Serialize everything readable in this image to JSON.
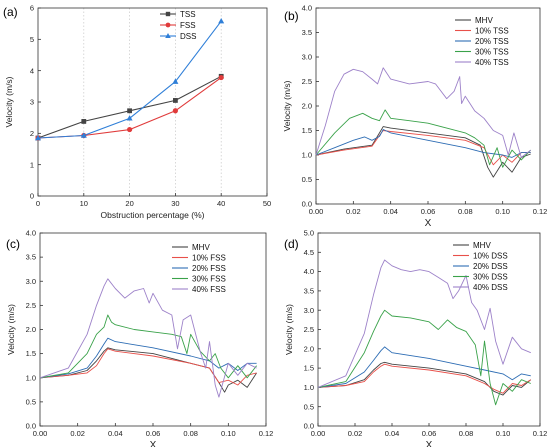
{
  "colors": {
    "mhv": "#444444",
    "pct10": "#e8504a",
    "pct20": "#2e6db4",
    "pct30": "#3aa24a",
    "pct40": "#9d82c9",
    "tss": "#444444",
    "fss": "#e03b3b",
    "dss": "#2f7fd8"
  },
  "chart_data": [
    {
      "panel_label": "(a)",
      "type": "line",
      "xlabel": "Obstruction percentage (%)",
      "ylabel": "Velocity (m/s)",
      "xlim": [
        0,
        50
      ],
      "ylim": [
        0,
        6
      ],
      "xticks": [
        "0",
        "10",
        "20",
        "30",
        "40",
        "50"
      ],
      "yticks": [
        "0",
        "1",
        "2",
        "3",
        "4",
        "5",
        "6"
      ],
      "legend_position": "top-center",
      "grid": "dotted vertical lines",
      "x": [
        0,
        10,
        20,
        30,
        40
      ],
      "series": [
        {
          "name": "TSS",
          "marker": "square",
          "color_key": "tss",
          "values": [
            1.85,
            2.38,
            2.72,
            3.05,
            3.82
          ]
        },
        {
          "name": "FSS",
          "marker": "circle",
          "color_key": "fss",
          "values": [
            1.85,
            1.93,
            2.12,
            2.72,
            3.78
          ]
        },
        {
          "name": "DSS",
          "marker": "triangle",
          "color_key": "dss",
          "values": [
            1.85,
            1.93,
            2.48,
            3.65,
            5.58
          ]
        }
      ]
    },
    {
      "panel_label": "(b)",
      "type": "line",
      "xlabel": "X",
      "ylabel": "Velocity (m/s)",
      "xlim": [
        0,
        0.12
      ],
      "ylim": [
        0,
        4.0
      ],
      "xticks": [
        "0.00",
        "0.02",
        "0.04",
        "0.06",
        "0.08",
        "0.10",
        "0.12"
      ],
      "yticks": [
        "0.0",
        "0.5",
        "1.0",
        "1.5",
        "2.0",
        "2.5",
        "3.0",
        "3.5",
        "4.0"
      ],
      "legend_position": "top-right",
      "series": [
        {
          "name": "MHV",
          "color_key": "mhv",
          "x": [
            0.0,
            0.015,
            0.03,
            0.034,
            0.036,
            0.04,
            0.06,
            0.08,
            0.088,
            0.092,
            0.095,
            0.1,
            0.105,
            0.11,
            0.115
          ],
          "values": [
            1.0,
            1.12,
            1.2,
            1.45,
            1.58,
            1.55,
            1.45,
            1.35,
            1.2,
            0.75,
            0.55,
            0.85,
            0.65,
            0.95,
            1.02
          ]
        },
        {
          "name": "10% TSS",
          "color_key": "pct10",
          "x": [
            0.0,
            0.015,
            0.03,
            0.034,
            0.036,
            0.04,
            0.06,
            0.08,
            0.09,
            0.095,
            0.1,
            0.105,
            0.11,
            0.115
          ],
          "values": [
            1.0,
            1.1,
            1.18,
            1.4,
            1.5,
            1.48,
            1.4,
            1.3,
            1.15,
            0.8,
            1.0,
            0.85,
            1.05,
            1.05
          ]
        },
        {
          "name": "20% TSS",
          "color_key": "pct20",
          "x": [
            0.0,
            0.01,
            0.02,
            0.026,
            0.03,
            0.034,
            0.036,
            0.04,
            0.06,
            0.08,
            0.09,
            0.1,
            0.105,
            0.11,
            0.115
          ],
          "values": [
            1.0,
            1.15,
            1.3,
            1.37,
            1.3,
            1.38,
            1.52,
            1.45,
            1.3,
            1.15,
            1.05,
            1.0,
            0.95,
            1.05,
            1.05
          ]
        },
        {
          "name": "30% TSS",
          "color_key": "pct30",
          "x": [
            0.0,
            0.01,
            0.018,
            0.025,
            0.03,
            0.034,
            0.037,
            0.04,
            0.05,
            0.06,
            0.07,
            0.08,
            0.085,
            0.09,
            0.093,
            0.097,
            0.1,
            0.105,
            0.11,
            0.115
          ],
          "values": [
            1.0,
            1.45,
            1.75,
            1.85,
            1.75,
            1.7,
            1.92,
            1.75,
            1.7,
            1.65,
            1.55,
            1.45,
            1.35,
            1.2,
            0.8,
            1.15,
            0.75,
            1.1,
            0.9,
            1.1
          ]
        },
        {
          "name": "40% TSS",
          "color_key": "pct40",
          "x": [
            0.0,
            0.005,
            0.01,
            0.015,
            0.02,
            0.025,
            0.03,
            0.033,
            0.036,
            0.04,
            0.05,
            0.06,
            0.064,
            0.07,
            0.074,
            0.077,
            0.078,
            0.08,
            0.085,
            0.09,
            0.095,
            0.1,
            0.103,
            0.106,
            0.11,
            0.115
          ],
          "values": [
            1.0,
            1.6,
            2.3,
            2.65,
            2.75,
            2.7,
            2.55,
            2.45,
            2.78,
            2.55,
            2.45,
            2.5,
            2.45,
            2.15,
            2.3,
            2.6,
            2.05,
            2.2,
            1.9,
            1.75,
            1.5,
            1.4,
            1.0,
            1.45,
            0.95,
            1.1
          ]
        }
      ]
    },
    {
      "panel_label": "(c)",
      "type": "line",
      "xlabel": "X",
      "ylabel": "Velocity (m/s)",
      "xlim": [
        0,
        0.12
      ],
      "ylim": [
        0,
        4.0
      ],
      "xticks": [
        "0.00",
        "0.02",
        "0.04",
        "0.06",
        "0.08",
        "0.10",
        "0.12"
      ],
      "yticks": [
        "0.0",
        "0.5",
        "1.0",
        "1.5",
        "2.0",
        "2.5",
        "3.0",
        "3.5",
        "4.0"
      ],
      "legend_position": "top-right",
      "series": [
        {
          "name": "MHV",
          "color_key": "mhv",
          "x": [
            0.0,
            0.015,
            0.025,
            0.03,
            0.034,
            0.036,
            0.04,
            0.06,
            0.08,
            0.09,
            0.095,
            0.098,
            0.1,
            0.105,
            0.11,
            0.115
          ],
          "values": [
            1.0,
            1.05,
            1.15,
            1.35,
            1.55,
            1.62,
            1.58,
            1.5,
            1.3,
            1.2,
            0.9,
            0.7,
            0.85,
            0.95,
            0.8,
            1.1
          ]
        },
        {
          "name": "10% FSS",
          "color_key": "pct10",
          "x": [
            0.0,
            0.015,
            0.025,
            0.03,
            0.034,
            0.036,
            0.04,
            0.06,
            0.08,
            0.09,
            0.095,
            0.1,
            0.105,
            0.11,
            0.115
          ],
          "values": [
            1.0,
            1.05,
            1.1,
            1.25,
            1.5,
            1.6,
            1.55,
            1.45,
            1.3,
            1.2,
            0.9,
            0.95,
            0.85,
            1.05,
            1.1
          ]
        },
        {
          "name": "20% FSS",
          "color_key": "pct20",
          "x": [
            0.0,
            0.015,
            0.025,
            0.03,
            0.034,
            0.036,
            0.04,
            0.06,
            0.08,
            0.09,
            0.095,
            0.1,
            0.105,
            0.11,
            0.115
          ],
          "values": [
            1.0,
            1.08,
            1.2,
            1.45,
            1.7,
            1.82,
            1.75,
            1.62,
            1.45,
            1.35,
            1.2,
            1.3,
            1.15,
            1.3,
            1.3
          ]
        },
        {
          "name": "30% FSS",
          "color_key": "pct30",
          "x": [
            0.0,
            0.015,
            0.025,
            0.03,
            0.034,
            0.036,
            0.038,
            0.04,
            0.05,
            0.06,
            0.07,
            0.075,
            0.078,
            0.08,
            0.085,
            0.09,
            0.093,
            0.096,
            0.1,
            0.105,
            0.11,
            0.115
          ],
          "values": [
            1.0,
            1.1,
            1.5,
            1.9,
            2.05,
            2.3,
            2.15,
            2.1,
            2.0,
            1.95,
            1.9,
            1.85,
            1.5,
            1.9,
            1.55,
            1.35,
            1.5,
            1.2,
            1.0,
            1.25,
            1.0,
            1.25
          ]
        },
        {
          "name": "40% FSS",
          "color_key": "pct40",
          "x": [
            0.0,
            0.015,
            0.025,
            0.03,
            0.034,
            0.036,
            0.04,
            0.045,
            0.05,
            0.055,
            0.058,
            0.06,
            0.065,
            0.07,
            0.073,
            0.076,
            0.08,
            0.085,
            0.088,
            0.09,
            0.093,
            0.095,
            0.1,
            0.105,
            0.11,
            0.115
          ],
          "values": [
            1.0,
            1.2,
            1.9,
            2.5,
            2.9,
            3.05,
            2.85,
            2.65,
            2.8,
            2.85,
            2.55,
            2.75,
            2.4,
            2.3,
            1.6,
            2.2,
            2.3,
            1.55,
            1.2,
            1.75,
            0.85,
            0.6,
            1.3,
            1.05,
            1.3,
            1.2
          ]
        }
      ]
    },
    {
      "panel_label": "(d)",
      "type": "line",
      "xlabel": "X",
      "ylabel": "Velocity (m/s)",
      "xlim": [
        0,
        0.12
      ],
      "ylim": [
        0,
        5.0
      ],
      "xticks": [
        "0.00",
        "0.02",
        "0.04",
        "0.06",
        "0.08",
        "0.10",
        "0.12"
      ],
      "yticks": [
        "0.0",
        "0.5",
        "1.0",
        "1.5",
        "2.0",
        "2.5",
        "3.0",
        "3.5",
        "4.0",
        "4.5",
        "5.0"
      ],
      "legend_position": "top-right",
      "series": [
        {
          "name": "MHV",
          "color_key": "mhv",
          "x": [
            0.0,
            0.015,
            0.025,
            0.03,
            0.034,
            0.036,
            0.04,
            0.06,
            0.08,
            0.09,
            0.095,
            0.1,
            0.105,
            0.11,
            0.115
          ],
          "values": [
            1.0,
            1.05,
            1.2,
            1.45,
            1.62,
            1.65,
            1.6,
            1.5,
            1.35,
            1.15,
            0.9,
            0.8,
            1.05,
            1.0,
            1.2
          ]
        },
        {
          "name": "10% DSS",
          "color_key": "pct10",
          "x": [
            0.0,
            0.015,
            0.025,
            0.03,
            0.034,
            0.036,
            0.04,
            0.06,
            0.08,
            0.09,
            0.095,
            0.1,
            0.105,
            0.11,
            0.115
          ],
          "values": [
            1.0,
            1.05,
            1.15,
            1.4,
            1.55,
            1.6,
            1.55,
            1.45,
            1.3,
            1.1,
            0.95,
            0.85,
            1.1,
            1.05,
            1.2
          ]
        },
        {
          "name": "20% DSS",
          "color_key": "pct20",
          "x": [
            0.0,
            0.015,
            0.025,
            0.03,
            0.034,
            0.036,
            0.04,
            0.06,
            0.08,
            0.09,
            0.1,
            0.105,
            0.11,
            0.115
          ],
          "values": [
            1.0,
            1.1,
            1.4,
            1.7,
            1.95,
            2.05,
            1.9,
            1.75,
            1.55,
            1.45,
            1.35,
            1.2,
            1.35,
            1.3
          ]
        },
        {
          "name": "30% DSS",
          "color_key": "pct30",
          "x": [
            0.0,
            0.015,
            0.025,
            0.03,
            0.034,
            0.036,
            0.04,
            0.05,
            0.06,
            0.065,
            0.07,
            0.075,
            0.08,
            0.085,
            0.088,
            0.09,
            0.093,
            0.096,
            0.1,
            0.105,
            0.11,
            0.115
          ],
          "values": [
            1.0,
            1.15,
            1.9,
            2.45,
            2.85,
            3.0,
            2.85,
            2.8,
            2.7,
            2.5,
            2.75,
            2.55,
            2.45,
            2.1,
            1.3,
            2.2,
            1.1,
            0.55,
            1.1,
            0.9,
            1.2,
            1.1
          ]
        },
        {
          "name": "40% DSS",
          "color_key": "pct40",
          "x": [
            0.0,
            0.015,
            0.025,
            0.03,
            0.034,
            0.036,
            0.04,
            0.045,
            0.05,
            0.055,
            0.06,
            0.065,
            0.07,
            0.073,
            0.076,
            0.08,
            0.083,
            0.086,
            0.09,
            0.093,
            0.096,
            0.1,
            0.105,
            0.11,
            0.115
          ],
          "values": [
            1.0,
            1.3,
            2.4,
            3.4,
            4.1,
            4.3,
            4.15,
            4.05,
            4.0,
            4.05,
            4.0,
            3.85,
            3.7,
            3.3,
            3.5,
            3.9,
            3.2,
            3.0,
            2.5,
            3.05,
            2.2,
            1.6,
            2.3,
            2.0,
            1.9
          ]
        }
      ]
    }
  ]
}
